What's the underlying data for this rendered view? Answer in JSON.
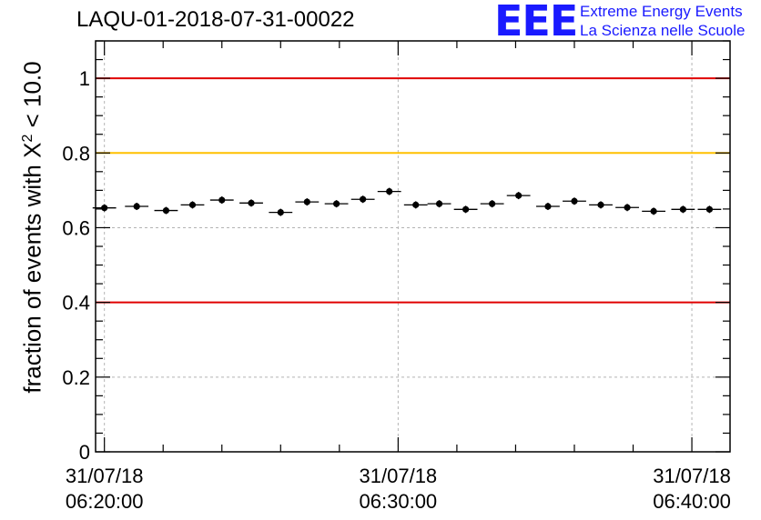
{
  "chart_data": {
    "type": "scatter",
    "title": "LAQU-01-2018-07-31-00022",
    "ylabel_prefix": "fraction of events with ",
    "ylabel_chi": "X",
    "ylabel_sup": "2",
    "ylabel_suffix": " < 10.0",
    "logo": {
      "mark": "EEE",
      "line1": "Extreme Energy Events",
      "line2": "La Scienza nelle Scuole"
    },
    "ylim": [
      0,
      1.1
    ],
    "yticks": [
      "0",
      "0.2",
      "0.4",
      "0.6",
      "0.8",
      "1"
    ],
    "ytick_values": [
      0,
      0.2,
      0.4,
      0.6,
      0.8,
      1.0
    ],
    "xlim_min": [
      -0.3,
      21.3
    ],
    "xtick_minutes": [
      0,
      10,
      20
    ],
    "xticks": [
      {
        "date": "31/07/18",
        "time": "06:20:00"
      },
      {
        "date": "31/07/18",
        "time": "06:30:00"
      },
      {
        "date": "31/07/18",
        "time": "06:40:00"
      }
    ],
    "grid": true,
    "reference_lines": [
      {
        "y": 1.0,
        "color": "#e00000"
      },
      {
        "y": 0.8,
        "color": "#ffc000"
      },
      {
        "y": 0.4,
        "color": "#e00000"
      }
    ],
    "bin_width_min": 0.8,
    "x_min": [
      0.0,
      1.1,
      2.1,
      3.0,
      4.0,
      5.0,
      6.0,
      6.9,
      7.9,
      8.8,
      9.7,
      10.6,
      11.4,
      12.3,
      13.2,
      14.1,
      15.1,
      16.0,
      16.9,
      17.8,
      18.7,
      19.7,
      20.6
    ],
    "values": [
      0.653,
      0.657,
      0.646,
      0.661,
      0.674,
      0.666,
      0.641,
      0.669,
      0.664,
      0.676,
      0.697,
      0.661,
      0.664,
      0.649,
      0.664,
      0.686,
      0.657,
      0.671,
      0.661,
      0.654,
      0.644,
      0.649,
      0.649
    ]
  }
}
